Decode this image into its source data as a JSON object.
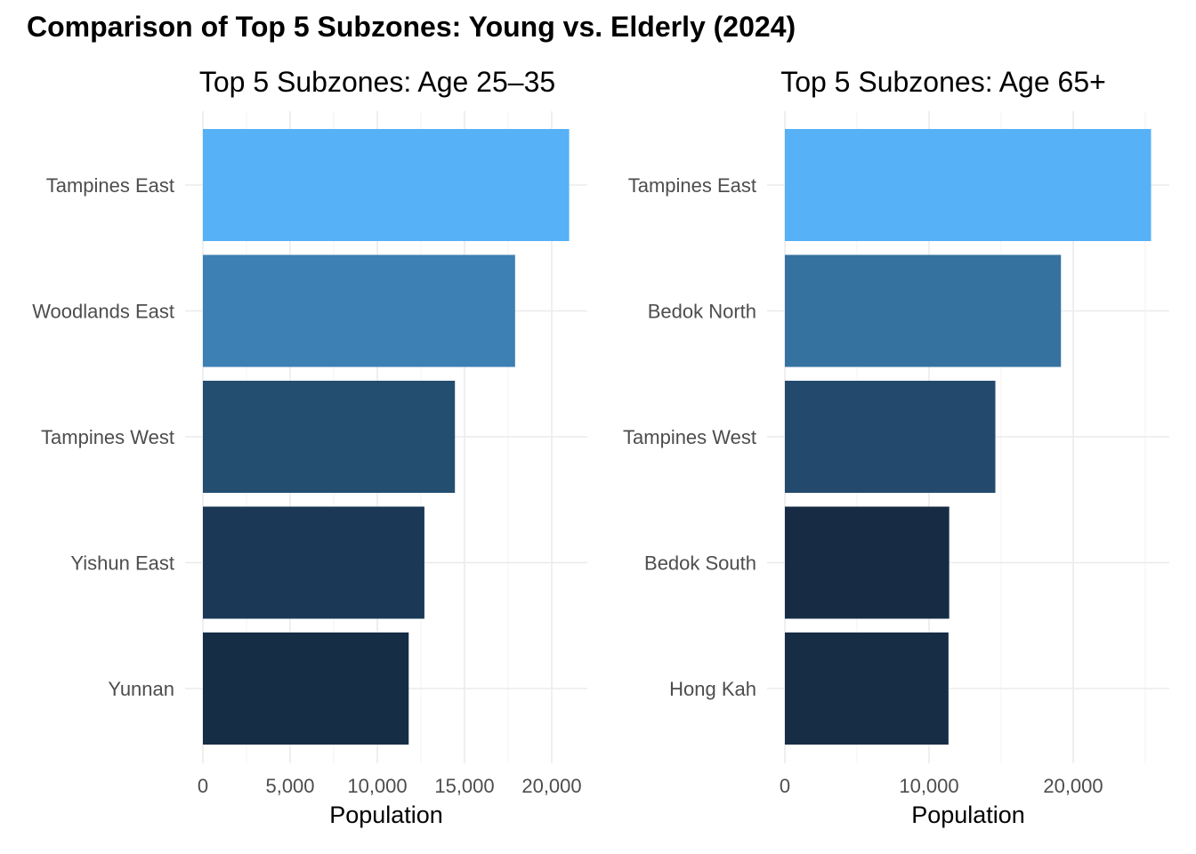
{
  "title": "Comparison of Top 5 Subzones: Young vs. Elderly (2024)",
  "chart_data": [
    {
      "type": "bar",
      "orientation": "horizontal",
      "title": "Top 5 Subzones: Age 25–35",
      "xlabel": "Population",
      "ylabel": "",
      "categories": [
        "Tampines East",
        "Woodlands East",
        "Tampines West",
        "Yishun East",
        "Yunnan"
      ],
      "values": [
        21000,
        17900,
        14450,
        12700,
        11800
      ],
      "colors": [
        "#56B1F7",
        "#3D80B3",
        "#234E70",
        "#1B3856",
        "#162D46"
      ],
      "xlim": [
        0,
        22000
      ],
      "xticks": [
        0,
        5000,
        10000,
        15000,
        20000
      ],
      "xtick_labels": [
        "0",
        "5,000",
        "10,000",
        "15,000",
        "20,000"
      ],
      "grid": true,
      "legend": "none"
    },
    {
      "type": "bar",
      "orientation": "horizontal",
      "title": "Top 5 Subzones: Age 65+",
      "xlabel": "Population",
      "ylabel": "",
      "categories": [
        "Tampines East",
        "Bedok North",
        "Tampines West",
        "Bedok South",
        "Hong Kah"
      ],
      "values": [
        25400,
        19150,
        14600,
        11400,
        11350
      ],
      "colors": [
        "#56B1F7",
        "#3672A0",
        "#234A6C",
        "#172C44",
        "#172D45"
      ],
      "xlim": [
        0,
        26700
      ],
      "xticks": [
        0,
        10000,
        20000
      ],
      "xtick_labels": [
        "0",
        "10,000",
        "20,000"
      ],
      "grid": true,
      "legend": "none"
    }
  ]
}
